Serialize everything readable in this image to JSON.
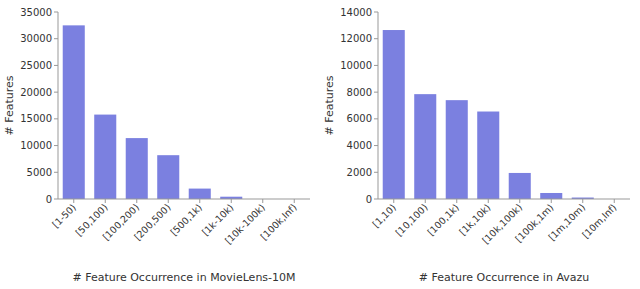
{
  "chart_data": [
    {
      "type": "bar",
      "xlabel": "# Feature Occurrence in MovieLens-10M",
      "ylabel": "# Features",
      "categories": [
        "[1-50)",
        "[50,100)",
        "[100,200)",
        "[200,500)",
        "[500,1k)",
        "[1k-10k)",
        "[10k-100k)",
        "[100k,Inf)"
      ],
      "values": [
        32500,
        15800,
        11400,
        8200,
        1950,
        430,
        0,
        0
      ],
      "color": "#7b80e0",
      "ylim": [
        0,
        35000
      ],
      "yticks": [
        0,
        5000,
        10000,
        15000,
        20000,
        25000,
        30000,
        35000
      ],
      "grid": false
    },
    {
      "type": "bar",
      "xlabel": "# Feature Occurrence in Avazu",
      "ylabel": "# Features",
      "categories": [
        "[1,10)",
        "[10,100)",
        "[100,1k)",
        "[1k,10k)",
        "[10k,100k)",
        "[100k,1m)",
        "[1m,10m)",
        "[10m,Inf)"
      ],
      "values": [
        12650,
        7850,
        7400,
        6550,
        1950,
        450,
        110,
        0
      ],
      "color": "#7b80e0",
      "ylim": [
        0,
        14000
      ],
      "yticks": [
        0,
        2000,
        4000,
        6000,
        8000,
        10000,
        12000,
        14000
      ],
      "grid": false
    }
  ]
}
